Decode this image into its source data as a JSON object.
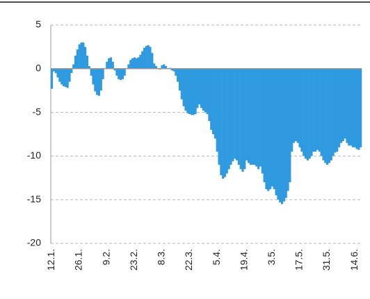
{
  "chart_data": {
    "type": "bar",
    "categories": [
      "12.1.",
      null,
      null,
      null,
      null,
      null,
      null,
      null,
      null,
      null,
      null,
      null,
      null,
      null,
      "26.1.",
      null,
      null,
      null,
      null,
      null,
      null,
      null,
      null,
      null,
      null,
      null,
      null,
      null,
      "9.2.",
      null,
      null,
      null,
      null,
      null,
      null,
      null,
      null,
      null,
      null,
      null,
      null,
      null,
      "23.2.",
      null,
      null,
      null,
      null,
      null,
      null,
      null,
      null,
      null,
      null,
      null,
      null,
      null,
      "8.3.",
      null,
      null,
      null,
      null,
      null,
      null,
      null,
      null,
      null,
      null,
      null,
      null,
      null,
      "22.3.",
      null,
      null,
      null,
      null,
      null,
      null,
      null,
      null,
      null,
      null,
      null,
      null,
      null,
      "5.4.",
      null,
      null,
      null,
      null,
      null,
      null,
      null,
      null,
      null,
      null,
      null,
      null,
      null,
      "19.4.",
      null,
      null,
      null,
      null,
      null,
      null,
      null,
      null,
      null,
      null,
      null,
      null,
      null,
      "3.5.",
      null,
      null,
      null,
      null,
      null,
      null,
      null,
      null,
      null,
      null,
      null,
      null,
      null,
      "17.5.",
      null,
      null,
      null,
      null,
      null,
      null,
      null,
      null,
      null,
      null,
      null,
      null,
      null,
      "31.5.",
      null,
      null,
      null,
      null,
      null,
      null,
      null,
      null,
      null,
      null,
      null,
      null,
      null,
      "14.6.",
      null,
      null,
      null
    ],
    "values": [
      -2.3,
      -0.3,
      -0.5,
      -1,
      -1.5,
      -1.8,
      -2,
      -2.1,
      -2.2,
      -1.5,
      -0.5,
      0.5,
      1.5,
      2.2,
      2.8,
      3,
      3,
      2.5,
      1.5,
      0.3,
      -0.8,
      -1.8,
      -2.6,
      -3,
      -3.1,
      -2.5,
      -1.2,
      0,
      0.8,
      1.2,
      1.3,
      0.8,
      -0.2,
      -0.8,
      -1.2,
      -1.3,
      -1.2,
      -0.8,
      0,
      0.5,
      1,
      1.2,
      1.3,
      1.2,
      1.3,
      1.6,
      2,
      2.4,
      2.6,
      2.7,
      2.5,
      1.8,
      0.6,
      0.3,
      0,
      -0.1,
      0.4,
      0.5,
      0.3,
      0,
      0.1,
      -0.2,
      -0.3,
      -0.8,
      -1.5,
      -2.5,
      -3.5,
      -4.3,
      -4.8,
      -5.1,
      -5.2,
      -5.3,
      -5.3,
      -5.2,
      -4.5,
      -4.1,
      -4.5,
      -4.8,
      -5,
      -5.2,
      -6,
      -7,
      -7.5,
      -8,
      -9.5,
      -11,
      -12.2,
      -12.6,
      -12.4,
      -12,
      -11.5,
      -11,
      -10.6,
      -10.3,
      -10.5,
      -11,
      -11.5,
      -11.8,
      -11.5,
      -10.5,
      -10.8,
      -11,
      -11,
      -11,
      -11.2,
      -11.5,
      -11.2,
      -12,
      -13,
      -13.8,
      -14,
      -13.8,
      -13.5,
      -13.8,
      -14.5,
      -15,
      -15.3,
      -15.5,
      -15.2,
      -14.8,
      -14,
      -13,
      -9.5,
      -8.5,
      -8.3,
      -8.5,
      -9,
      -9.5,
      -10,
      -10.3,
      -10.5,
      -10.3,
      -10,
      -9.5,
      -9.5,
      -9.3,
      -9.5,
      -10,
      -10.5,
      -10.8,
      -11,
      -10.8,
      -10.5,
      -10,
      -9.6,
      -9.5,
      -9,
      -8.5,
      -8.3,
      -8,
      -8.5,
      -8.8,
      -8.8,
      -9,
      -9,
      -9.2,
      -9.3,
      -9
    ],
    "color": "#2f9ae0",
    "ylim": [
      -20,
      5
    ],
    "yticks": [
      -20,
      -15,
      -10,
      -5,
      0,
      5
    ],
    "grid": true
  }
}
